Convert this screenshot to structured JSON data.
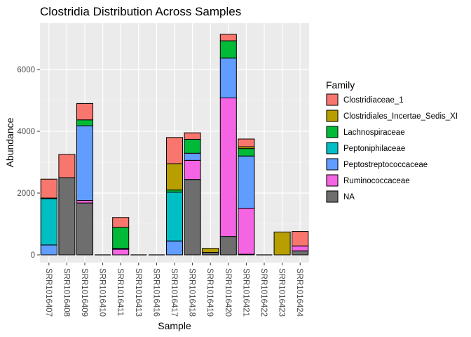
{
  "chart_data": {
    "type": "bar",
    "stacked": true,
    "title": "Clostridia Distribution Across Samples",
    "xlabel": "Sample",
    "ylabel": "Abundance",
    "ylim": [
      -250,
      7500
    ],
    "yticks": [
      0,
      2000,
      4000,
      6000
    ],
    "grid": true,
    "legend_position": "right",
    "legend": {
      "title": "Family",
      "entries": [
        {
          "name": "Clostridiaceae_1",
          "color": "#F8766D"
        },
        {
          "name": "Clostridiales_Incertae_Sedis_XI",
          "color": "#B79F00"
        },
        {
          "name": "Lachnospiraceae",
          "color": "#00BA38"
        },
        {
          "name": "Peptoniphilaceae",
          "color": "#00BFC4"
        },
        {
          "name": "Peptostreptococcaceae",
          "color": "#619CFF"
        },
        {
          "name": "Ruminococcaceae",
          "color": "#F564E3"
        },
        {
          "name": "NA",
          "color": "#6E6E6E"
        }
      ]
    },
    "categories": [
      "SRR1016407",
      "SRR1016408",
      "SRR1016409",
      "SRR1016410",
      "SRR1016411",
      "SRR1016413",
      "SRR1016416",
      "SRR1016417",
      "SRR1016418",
      "SRR1016419",
      "SRR1016420",
      "SRR1016421",
      "SRR1016422",
      "SRR1016423",
      "SRR1016424"
    ],
    "series": [
      {
        "name": "Clostridiaceae_1",
        "values": [
          610,
          750,
          530,
          0,
          320,
          0,
          0,
          850,
          210,
          0,
          210,
          250,
          0,
          0,
          470
        ]
      },
      {
        "name": "Clostridiales_Incertae_Sedis_XI",
        "values": [
          0,
          0,
          0,
          0,
          0,
          0,
          0,
          850,
          0,
          130,
          0,
          60,
          0,
          740,
          0
        ]
      },
      {
        "name": "Lachnospiraceae",
        "values": [
          20,
          0,
          190,
          0,
          680,
          0,
          0,
          70,
          450,
          0,
          560,
          240,
          0,
          0,
          0
        ]
      },
      {
        "name": "Peptoniphilaceae",
        "values": [
          1500,
          0,
          0,
          0,
          0,
          0,
          0,
          1580,
          0,
          0,
          0,
          0,
          0,
          0,
          0
        ]
      },
      {
        "name": "Peptostreptococcaceae",
        "values": [
          320,
          0,
          2420,
          0,
          30,
          0,
          0,
          450,
          230,
          0,
          1290,
          1690,
          0,
          0,
          0
        ]
      },
      {
        "name": "Ruminococcaceae",
        "values": [
          0,
          0,
          80,
          0,
          180,
          0,
          0,
          0,
          620,
          0,
          4480,
          1490,
          0,
          0,
          160
        ]
      },
      {
        "name": "NA",
        "values": [
          0,
          2500,
          1680,
          0,
          0,
          0,
          0,
          0,
          2440,
          80,
          600,
          20,
          0,
          0,
          130
        ]
      }
    ]
  }
}
